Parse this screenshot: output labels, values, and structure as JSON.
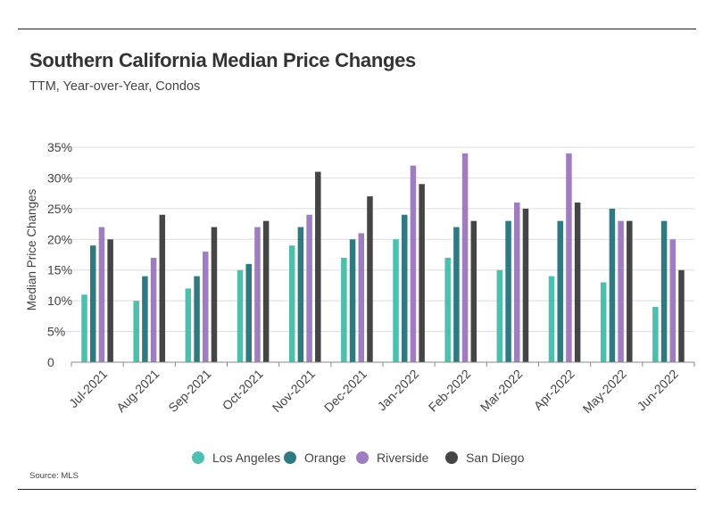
{
  "header": {
    "title": "Southern California Median Price Changes",
    "subtitle": "TTM, Year-over-Year, Condos"
  },
  "footer": {
    "source": "Source:  MLS"
  },
  "colors": {
    "Los Angeles": "#4dbfad",
    "Orange": "#2e7a80",
    "Riverside": "#a07cc0",
    "San Diego": "#454545",
    "grid": "#dddddd",
    "axis": "#888888"
  },
  "chart_data": {
    "type": "bar",
    "title": "Southern California Median Price Changes",
    "subtitle": "TTM, Year-over-Year, Condos",
    "xlabel": "",
    "ylabel": "Median Price Changes",
    "ylim": [
      0,
      35
    ],
    "yticks": [
      0,
      5,
      10,
      15,
      20,
      25,
      30,
      35
    ],
    "ytick_labels": [
      "0",
      "5%",
      "10%",
      "15%",
      "20%",
      "25%",
      "30%",
      "35%"
    ],
    "grid": true,
    "legend_position": "bottom-center",
    "categories": [
      "Jul-2021",
      "Aug-2021",
      "Sep-2021",
      "Oct-2021",
      "Nov-2021",
      "Dec-2021",
      "Jan-2022",
      "Feb-2022",
      "Mar-2022",
      "Apr-2022",
      "May-2022",
      "Jun-2022"
    ],
    "series": [
      {
        "name": "Los Angeles",
        "values": [
          11,
          10,
          12,
          15,
          19,
          17,
          20,
          17,
          15,
          14,
          13,
          9
        ]
      },
      {
        "name": "Orange",
        "values": [
          19,
          14,
          14,
          16,
          22,
          20,
          24,
          22,
          23,
          23,
          25,
          23
        ]
      },
      {
        "name": "Riverside",
        "values": [
          22,
          17,
          18,
          22,
          24,
          21,
          32,
          34,
          26,
          34,
          23,
          20
        ]
      },
      {
        "name": "San Diego",
        "values": [
          20,
          24,
          22,
          23,
          31,
          27,
          29,
          23,
          25,
          26,
          23,
          15
        ]
      }
    ]
  }
}
